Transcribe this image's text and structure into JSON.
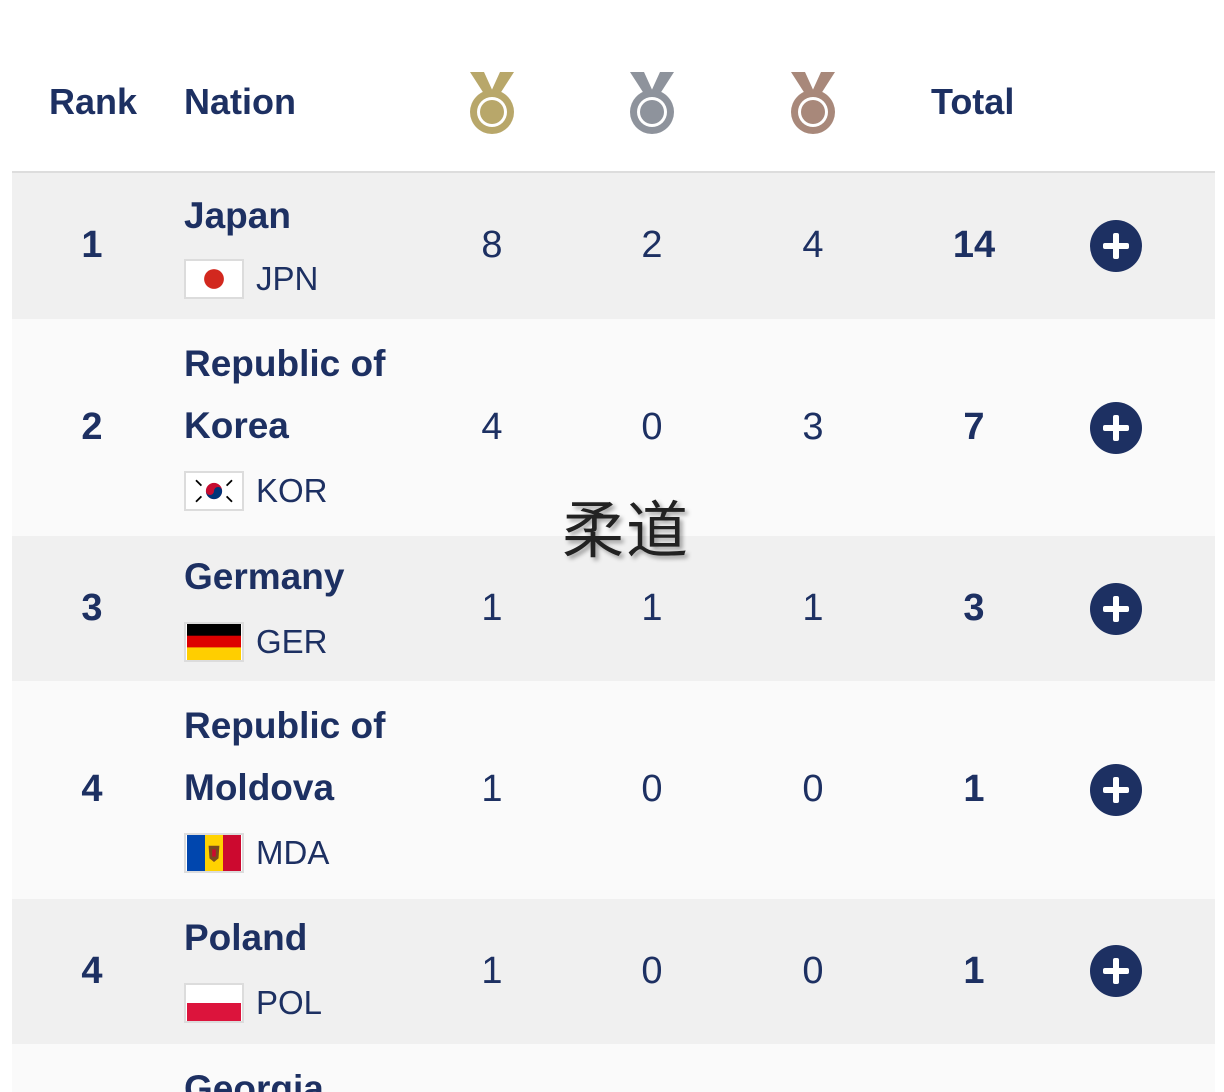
{
  "header": {
    "rank_label": "Rank",
    "nation_label": "Nation",
    "total_label": "Total",
    "medals": [
      {
        "name": "gold",
        "color": "#b8a76a"
      },
      {
        "name": "silver",
        "color": "#8e939c"
      },
      {
        "name": "bronze",
        "color": "#a8887a"
      }
    ]
  },
  "overlay_text": "柔道",
  "colors": {
    "text": "#1d3062",
    "row_odd": "#f0f0f0",
    "row_even": "#fafafa"
  },
  "rows": [
    {
      "rank": "1",
      "nation": "Japan",
      "code": "JPN",
      "flag": "jpn-flag",
      "gold": "8",
      "silver": "2",
      "bronze": "4",
      "total": "14"
    },
    {
      "rank": "2",
      "nation": "Republic of Korea",
      "code": "KOR",
      "flag": "kor-flag",
      "gold": "4",
      "silver": "0",
      "bronze": "3",
      "total": "7"
    },
    {
      "rank": "3",
      "nation": "Germany",
      "code": "GER",
      "flag": "ger-flag",
      "gold": "1",
      "silver": "1",
      "bronze": "1",
      "total": "3"
    },
    {
      "rank": "4",
      "nation": "Republic of Moldova",
      "code": "MDA",
      "flag": "mda-flag",
      "gold": "1",
      "silver": "0",
      "bronze": "0",
      "total": "1"
    },
    {
      "rank": "4",
      "nation": "Poland",
      "code": "POL",
      "flag": "pol-flag",
      "gold": "1",
      "silver": "0",
      "bronze": "0",
      "total": "1"
    },
    {
      "nation": "Georgia"
    }
  ]
}
